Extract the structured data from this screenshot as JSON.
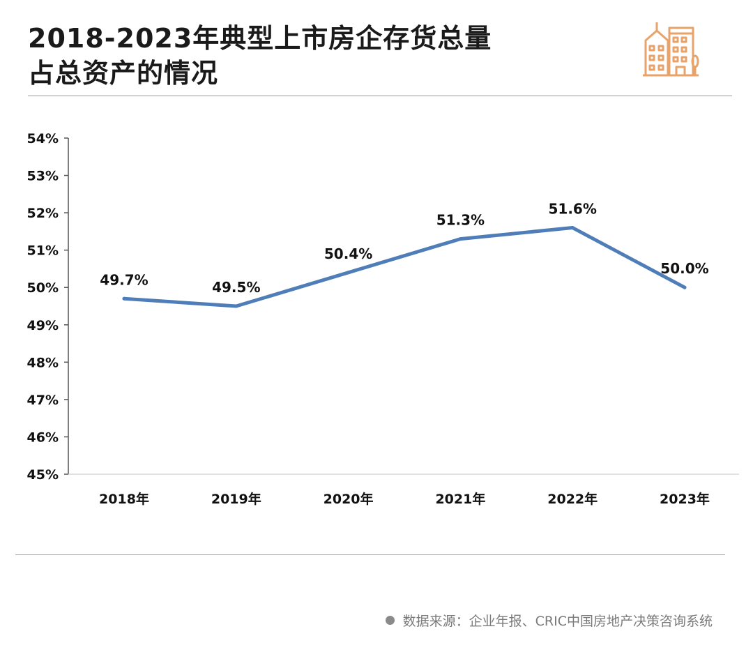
{
  "header": {
    "title_line1": "2018-2023年典型上市房企存货总量",
    "title_line2": "占总资产的情况"
  },
  "logo": {
    "icon": "city-buildings-icon",
    "color": "#E8A36B"
  },
  "chart_data": {
    "type": "line",
    "categories": [
      "2018年",
      "2019年",
      "2020年",
      "2021年",
      "2022年",
      "2023年"
    ],
    "series": [
      {
        "values": [
          49.7,
          49.5,
          50.4,
          51.3,
          51.6,
          50.0
        ],
        "labels": [
          "49.7%",
          "49.5%",
          "50.4%",
          "51.3%",
          "51.6%",
          "50.0%"
        ],
        "color": "#4F7DB8"
      }
    ],
    "ylim": [
      45,
      54
    ],
    "yticks": [
      "45%",
      "46%",
      "47%",
      "48%",
      "49%",
      "50%",
      "51%",
      "52%",
      "53%",
      "54%"
    ],
    "grid": false
  },
  "footer": {
    "source": "数据来源：企业年报、CRIC中国房地产决策咨询系统"
  }
}
